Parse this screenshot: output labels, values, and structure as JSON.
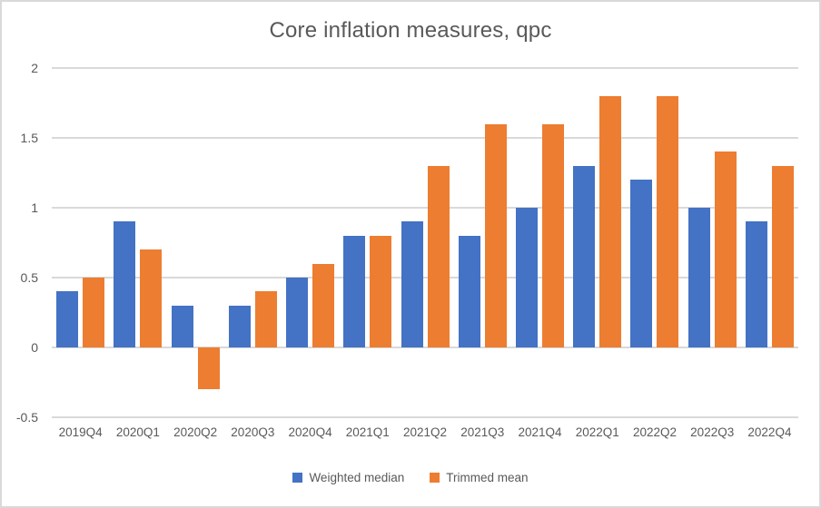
{
  "chart_data": {
    "type": "bar",
    "title": "Core inflation measures, qpc",
    "categories": [
      "2019Q4",
      "2020Q1",
      "2020Q2",
      "2020Q3",
      "2020Q4",
      "2021Q1",
      "2021Q2",
      "2021Q3",
      "2021Q4",
      "2022Q1",
      "2022Q2",
      "2022Q3",
      "2022Q4"
    ],
    "series": [
      {
        "name": "Weighted median",
        "color": "#4472C4",
        "values": [
          0.4,
          0.9,
          0.3,
          0.3,
          0.5,
          0.8,
          0.9,
          0.8,
          1.0,
          1.3,
          1.2,
          1.0,
          0.9
        ]
      },
      {
        "name": "Trimmed mean",
        "color": "#ED7D31",
        "values": [
          0.5,
          0.7,
          -0.3,
          0.4,
          0.6,
          0.8,
          1.3,
          1.6,
          1.6,
          1.8,
          1.8,
          1.4,
          1.3
        ]
      }
    ],
    "xlabel": "",
    "ylabel": "",
    "ylim": [
      -0.5,
      2
    ],
    "yticks": [
      2,
      1.5,
      1,
      0.5,
      0,
      -0.5
    ],
    "grid": true,
    "legend_position": "bottom"
  },
  "colors": {
    "text": "#595959",
    "gridline": "#D9D9D9",
    "frame_border": "#D9D9D9",
    "background": "#FFFFFF",
    "weighted_median": "#4472C4",
    "trimmed_mean": "#ED7D31"
  }
}
